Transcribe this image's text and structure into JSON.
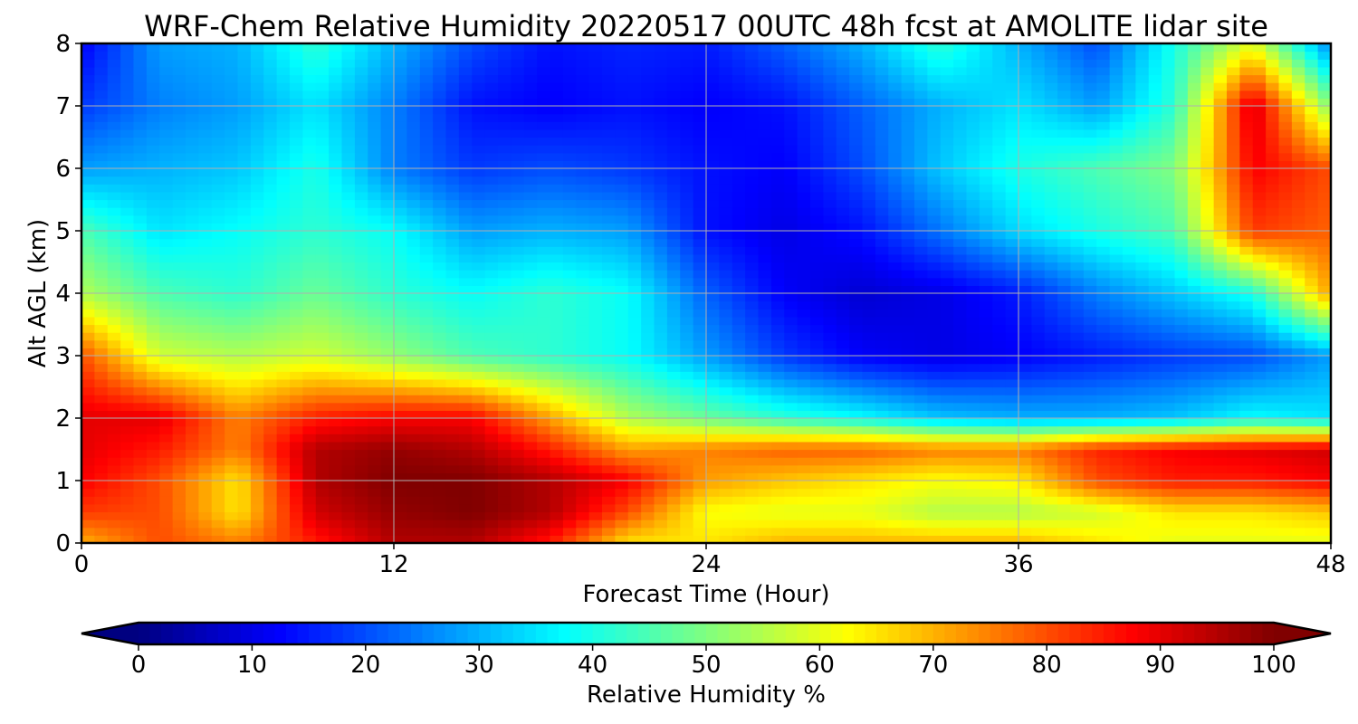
{
  "chart_data": {
    "type": "heatmap",
    "title": "WRF-Chem Relative Humidity 20220517 00UTC 48h fcst at AMOLITE lidar site",
    "xlabel": "Forecast Time (Hour)",
    "ylabel": "Alt AGL (km)",
    "xlim": [
      0,
      48
    ],
    "ylim": [
      0,
      8
    ],
    "x_ticks": [
      0,
      12,
      24,
      36,
      48
    ],
    "y_ticks": [
      0,
      1,
      2,
      3,
      4,
      5,
      6,
      7,
      8
    ],
    "grid": true,
    "x": [
      0,
      3,
      6,
      9,
      12,
      15,
      18,
      21,
      24,
      27,
      30,
      33,
      36,
      39,
      42,
      45,
      48
    ],
    "y": [
      0,
      0.5,
      1,
      1.5,
      2,
      3,
      4,
      5,
      6,
      7,
      8
    ],
    "z": [
      [
        70,
        80,
        75,
        85,
        95,
        95,
        85,
        65,
        65,
        70,
        70,
        70,
        70,
        65,
        60,
        60,
        60
      ],
      [
        82,
        80,
        65,
        92,
        98,
        100,
        95,
        80,
        62,
        60,
        60,
        55,
        55,
        58,
        65,
        65,
        68
      ],
      [
        88,
        80,
        65,
        95,
        100,
        100,
        95,
        88,
        72,
        68,
        65,
        62,
        64,
        80,
        85,
        85,
        88
      ],
      [
        90,
        85,
        75,
        95,
        98,
        95,
        85,
        72,
        75,
        78,
        78,
        75,
        75,
        84,
        88,
        90,
        92
      ],
      [
        90,
        90,
        75,
        85,
        88,
        88,
        72,
        55,
        48,
        42,
        38,
        32,
        30,
        30,
        32,
        38,
        35
      ],
      [
        80,
        58,
        55,
        58,
        52,
        45,
        42,
        38,
        28,
        18,
        12,
        10,
        12,
        15,
        18,
        20,
        28
      ],
      [
        55,
        45,
        42,
        48,
        42,
        38,
        42,
        38,
        22,
        12,
        8,
        10,
        15,
        25,
        32,
        40,
        72
      ],
      [
        45,
        35,
        38,
        42,
        38,
        28,
        30,
        28,
        14,
        10,
        14,
        24,
        34,
        40,
        45,
        82,
        78
      ],
      [
        28,
        30,
        32,
        40,
        25,
        18,
        20,
        18,
        14,
        12,
        20,
        32,
        40,
        45,
        50,
        88,
        80
      ],
      [
        18,
        25,
        28,
        35,
        25,
        14,
        12,
        14,
        12,
        14,
        22,
        30,
        35,
        28,
        42,
        92,
        50
      ],
      [
        12,
        28,
        30,
        42,
        30,
        20,
        14,
        16,
        15,
        22,
        30,
        42,
        30,
        20,
        40,
        60,
        25
      ]
    ],
    "colorbar": {
      "label": "Relative Humidity %",
      "min": 0,
      "max": 100,
      "ticks": [
        0,
        10,
        20,
        30,
        40,
        50,
        60,
        70,
        80,
        90,
        100
      ],
      "extend": "both",
      "colormap": "jet"
    }
  }
}
